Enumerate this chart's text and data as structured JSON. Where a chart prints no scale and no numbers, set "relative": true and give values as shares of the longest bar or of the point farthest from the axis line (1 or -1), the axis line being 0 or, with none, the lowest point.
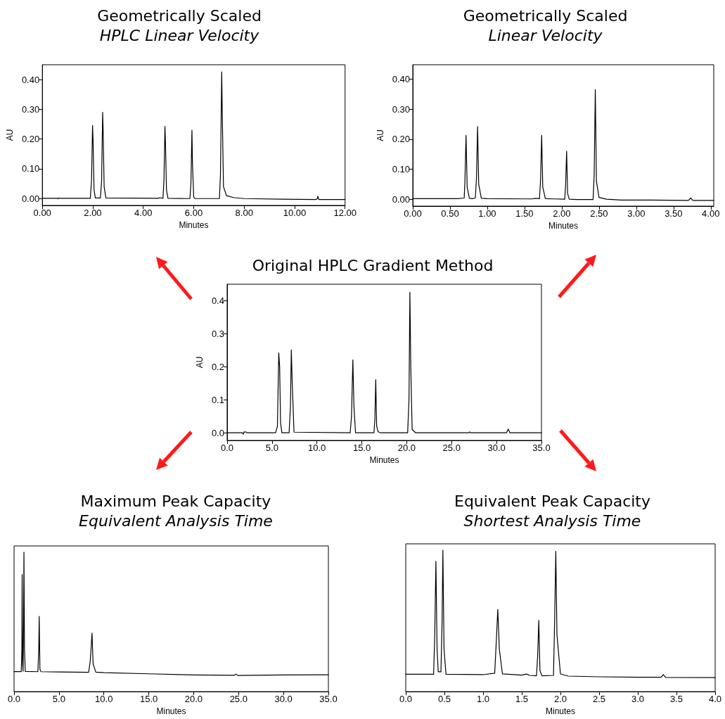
{
  "chart_data": [
    {
      "type": "line",
      "title": "Geometrically Scaled",
      "subtitle": "HPLC Linear Velocity",
      "xlabel": "Minutes",
      "ylabel": "AU",
      "grid": false,
      "marker": "none",
      "xlim": [
        0,
        12
      ],
      "xticks": [
        {
          "value": 0,
          "label": "0.00"
        },
        {
          "value": 2,
          "label": "2.00"
        },
        {
          "value": 4,
          "label": "4.00"
        },
        {
          "value": 6,
          "label": "6.00"
        },
        {
          "value": 8,
          "label": "8.00"
        },
        {
          "value": 10,
          "label": "10.00"
        },
        {
          "value": 12,
          "label": "12.00"
        }
      ],
      "ylim": [
        -0.023,
        0.45
      ],
      "yticks": [
        {
          "value": 0,
          "label": "0.00"
        },
        {
          "value": 0.1,
          "label": "0.10"
        },
        {
          "value": 0.2,
          "label": "0.20"
        },
        {
          "value": 0.3,
          "label": "0.30"
        },
        {
          "value": 0.4,
          "label": "0.40"
        }
      ],
      "x": [
        0,
        0.6,
        0.62,
        0.65,
        0.7,
        1.9,
        1.95,
        1.99,
        2.01,
        2.05,
        2.1,
        2.3,
        2.35,
        2.39,
        2.41,
        2.45,
        2.52,
        4.6,
        4.65,
        4.78,
        4.82,
        4.86,
        4.88,
        4.92,
        4.98,
        5.85,
        5.89,
        5.93,
        5.95,
        6.0,
        6.05,
        7.02,
        7.06,
        7.11,
        7.13,
        7.18,
        7.3,
        7.6,
        8.0,
        9.5,
        10.85,
        10.9,
        10.92,
        10.96,
        11.5,
        12.0
      ],
      "series": [
        {
          "color": "#000000",
          "values": [
            0.001,
            0.001,
            -0.001,
            0.002,
            0.001,
            0.001,
            0.06,
            0.246,
            0.2,
            0.03,
            0.002,
            0.002,
            0.06,
            0.29,
            0.23,
            0.04,
            0.002,
            0.001,
            0.003,
            0.001,
            0.06,
            0.243,
            0.19,
            0.03,
            0.001,
            0.0,
            0.05,
            0.23,
            0.12,
            0.005,
            0.0,
            0.0,
            0.08,
            0.426,
            0.3,
            0.04,
            0.01,
            0.003,
            0.0,
            -0.002,
            -0.003,
            0.0,
            0.008,
            -0.003,
            -0.003,
            -0.003
          ]
        }
      ]
    },
    {
      "type": "line",
      "title": "Geometrically Scaled",
      "subtitle": "Linear Velocity",
      "xlabel": "Minutes",
      "ylabel": "AU",
      "grid": false,
      "marker": "none",
      "xlim": [
        0,
        4.04
      ],
      "xticks": [
        {
          "value": 0,
          "label": "0.00"
        },
        {
          "value": 0.5,
          "label": "0.50"
        },
        {
          "value": 1,
          "label": "1.00"
        },
        {
          "value": 1.5,
          "label": "1.50"
        },
        {
          "value": 2,
          "label": "2.00"
        },
        {
          "value": 2.5,
          "label": "2.50"
        },
        {
          "value": 3,
          "label": "3.00"
        },
        {
          "value": 3.5,
          "label": "3.50"
        },
        {
          "value": 4,
          "label": "4.00"
        }
      ],
      "ylim": [
        -0.023,
        0.448
      ],
      "yticks": [
        {
          "value": 0,
          "label": "0.00"
        },
        {
          "value": 0.1,
          "label": "0.10"
        },
        {
          "value": 0.2,
          "label": "0.20"
        },
        {
          "value": 0.3,
          "label": "0.30"
        },
        {
          "value": 0.4,
          "label": "0.40"
        }
      ],
      "x": [
        0,
        0.6,
        0.69,
        0.7,
        0.715,
        0.73,
        0.76,
        0.8,
        0.84,
        0.855,
        0.87,
        0.885,
        0.92,
        1.0,
        1.6,
        1.65,
        1.7,
        1.715,
        1.73,
        1.745,
        1.78,
        1.9,
        2.04,
        2.052,
        2.065,
        2.078,
        2.1,
        2.2,
        2.42,
        2.435,
        2.45,
        2.465,
        2.5,
        2.6,
        2.8,
        3.2,
        3.7,
        3.73,
        3.76,
        4.04
      ],
      "series": [
        {
          "color": "#000000",
          "values": [
            0.002,
            0.002,
            0.004,
            0.06,
            0.213,
            0.04,
            0.003,
            0.002,
            0.004,
            0.07,
            0.242,
            0.05,
            0.003,
            0.002,
            0.001,
            0.003,
            0.002,
            0.06,
            0.213,
            0.04,
            0.002,
            0.001,
            0.0,
            0.05,
            0.16,
            0.02,
            0.0,
            -0.001,
            -0.001,
            0.08,
            0.365,
            0.06,
            0.006,
            0.0,
            -0.003,
            -0.003,
            -0.004,
            0.004,
            -0.004,
            -0.004
          ]
        }
      ]
    },
    {
      "type": "line",
      "title": "Original HPLC Gradient Method",
      "xlabel": "Minutes",
      "ylabel": "AU",
      "grid": false,
      "marker": "none",
      "xlim": [
        0,
        35
      ],
      "xticks": [
        {
          "value": 0,
          "label": "0.0"
        },
        {
          "value": 5,
          "label": "5.0"
        },
        {
          "value": 10,
          "label": "10.0"
        },
        {
          "value": 15,
          "label": "15.0"
        },
        {
          "value": 20,
          "label": "20.0"
        },
        {
          "value": 25,
          "label": "25.0"
        },
        {
          "value": 30,
          "label": "30.0"
        },
        {
          "value": 35,
          "label": "35.0"
        }
      ],
      "ylim": [
        -0.023,
        0.45
      ],
      "yticks": [
        {
          "value": 0,
          "label": "0.0"
        },
        0.1,
        0.2,
        0.3,
        0.4
      ],
      "x": [
        0,
        1.7,
        1.8,
        1.9,
        2.0,
        2.1,
        2.2,
        5.4,
        5.6,
        5.75,
        5.85,
        5.95,
        6.1,
        6.9,
        7.05,
        7.15,
        7.25,
        7.45,
        13.7,
        13.85,
        14.0,
        14.12,
        14.3,
        16.35,
        16.45,
        16.55,
        16.65,
        16.8,
        16.9,
        17.1,
        20.1,
        20.25,
        20.35,
        20.45,
        20.6,
        21.0,
        26.9,
        27.0,
        27.1,
        31.1,
        31.3,
        31.5,
        35
      ],
      "series": [
        {
          "color": "#000000",
          "values": [
            0,
            0,
            -0.004,
            0.003,
            0.002,
            0.003,
            0,
            0,
            0.02,
            0.242,
            0.2,
            0.03,
            0,
            0,
            0.08,
            0.251,
            0.15,
            0.002,
            0,
            0.05,
            0.221,
            0.08,
            0,
            0,
            0.04,
            0.161,
            0.02,
            0.004,
            0.002,
            0,
            0,
            0.1,
            0.426,
            0.2,
            0.01,
            0,
            0,
            0.003,
            0,
            0,
            0.011,
            0,
            0
          ]
        }
      ]
    },
    {
      "type": "line",
      "title": "Maximum Peak Capacity",
      "subtitle": "Equivalent Analysis Time",
      "xlabel": "Minutes",
      "relative": true,
      "tick_labels": "x",
      "grid": false,
      "marker": "none",
      "xlim": [
        0,
        35
      ],
      "xticks": [
        {
          "value": 0,
          "label": "0.0"
        },
        {
          "value": 5,
          "label": "5.0"
        },
        {
          "value": 10,
          "label": "10.0"
        },
        {
          "value": 15,
          "label": "15.0"
        },
        {
          "value": 20,
          "label": "20.0"
        },
        {
          "value": 25,
          "label": "25.0"
        },
        {
          "value": 30,
          "label": "30.0"
        },
        {
          "value": 35,
          "label": "35.0"
        }
      ],
      "x": [
        0,
        0.8,
        0.87,
        0.9,
        0.95,
        1.0,
        1.06,
        1.1,
        1.16,
        1.25,
        2.65,
        2.75,
        2.8,
        2.88,
        3.0,
        5.0,
        8.3,
        8.45,
        8.55,
        8.68,
        8.8,
        9.1,
        10,
        15,
        20,
        24.5,
        24.7,
        24.9,
        30,
        35
      ],
      "series": [
        {
          "color": "#000000",
          "values": [
            0.144,
            0.144,
            0.3,
            0.84,
            0.2,
            0.146,
            0.5,
            1,
            0.3,
            0.145,
            0.143,
            0.3,
            0.54,
            0.16,
            0.143,
            0.141,
            0.139,
            0.2,
            0.28,
            0.42,
            0.2,
            0.14,
            0.136,
            0.128,
            0.12,
            0.117,
            0.126,
            0.116,
            0.12,
            0.121
          ]
        }
      ]
    },
    {
      "type": "line",
      "title": "Equivalent Peak Capacity",
      "subtitle": "Shortest Analysis Time",
      "xlabel": "Minutes",
      "relative": true,
      "tick_labels": "x",
      "grid": false,
      "marker": "none",
      "xlim": [
        0,
        4
      ],
      "xticks": [
        {
          "value": 0,
          "label": "0.0"
        },
        0.5,
        {
          "value": 1,
          "label": "1.0"
        },
        1.5,
        {
          "value": 2,
          "label": "2.0"
        },
        2.5,
        {
          "value": 3,
          "label": "3.0"
        },
        3.5,
        {
          "value": 4,
          "label": "4.0"
        }
      ],
      "x": [
        0,
        0.36,
        0.375,
        0.39,
        0.405,
        0.42,
        0.455,
        0.47,
        0.48,
        0.495,
        0.52,
        1.0,
        1.15,
        1.17,
        1.19,
        1.21,
        1.25,
        1.5,
        1.56,
        1.6,
        1.69,
        1.705,
        1.72,
        1.735,
        1.76,
        1.91,
        1.925,
        1.94,
        1.955,
        2.0,
        2.1,
        2.5,
        3.0,
        3.3,
        3.33,
        3.36,
        4.0
      ],
      "series": [
        {
          "color": "#000000",
          "values": [
            0.123,
            0.123,
            0.4,
            0.922,
            0.3,
            0.14,
            0.14,
            0.5,
            1,
            0.3,
            0.123,
            0.12,
            0.13,
            0.35,
            0.581,
            0.3,
            0.125,
            0.117,
            0.124,
            0.115,
            0.112,
            0.25,
            0.503,
            0.15,
            0.112,
            0.115,
            0.5,
            0.992,
            0.4,
            0.125,
            0.11,
            0.105,
            0.102,
            0.102,
            0.12,
            0.101,
            0.099
          ]
        }
      ]
    }
  ]
}
